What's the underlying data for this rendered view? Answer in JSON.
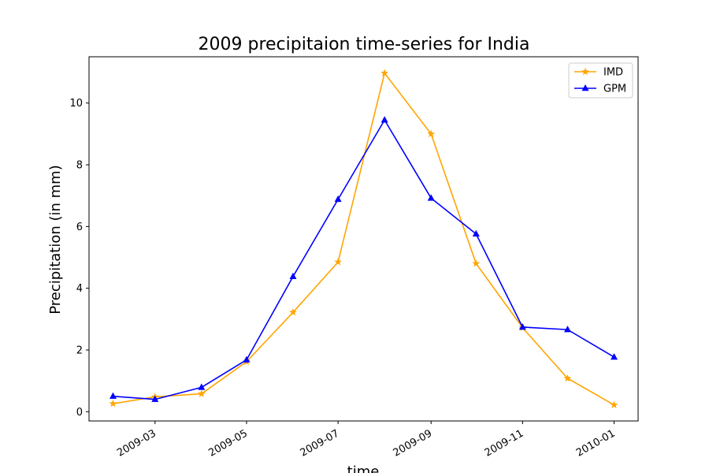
{
  "chart_data": {
    "type": "line",
    "title": "2009 precipitaion time-series for India",
    "xlabel": "time",
    "ylabel": "Precipitation (in mm)",
    "x": [
      "2009-02-01",
      "2009-03-01",
      "2009-04-01",
      "2009-05-01",
      "2009-06-01",
      "2009-07-01",
      "2009-08-01",
      "2009-09-01",
      "2009-10-01",
      "2009-11-01",
      "2009-12-01",
      "2010-01-01"
    ],
    "series": [
      {
        "name": "IMD",
        "color": "#ffa500",
        "marker": "star",
        "values": [
          0.26,
          0.48,
          0.58,
          1.62,
          3.22,
          4.85,
          10.97,
          9.0,
          4.8,
          2.72,
          1.08,
          0.22
        ]
      },
      {
        "name": "GPM",
        "color": "#0000ff",
        "marker": "triangle",
        "values": [
          0.5,
          0.4,
          0.79,
          1.68,
          4.38,
          6.88,
          9.45,
          6.92,
          5.76,
          2.74,
          2.66,
          1.77
        ]
      }
    ],
    "xticks": [
      "2009-03",
      "2009-05",
      "2009-07",
      "2009-09",
      "2009-11",
      "2010-01"
    ],
    "xtick_dates": [
      "2009-03-01",
      "2009-05-01",
      "2009-07-01",
      "2009-09-01",
      "2009-11-01",
      "2010-01-01"
    ],
    "yticks": [
      0,
      2,
      4,
      6,
      8,
      10
    ],
    "xlim": [
      "2009-01-16",
      "2010-01-17"
    ],
    "ylim": [
      -0.3,
      11.5
    ],
    "grid": false,
    "legend_position": "top-right"
  }
}
